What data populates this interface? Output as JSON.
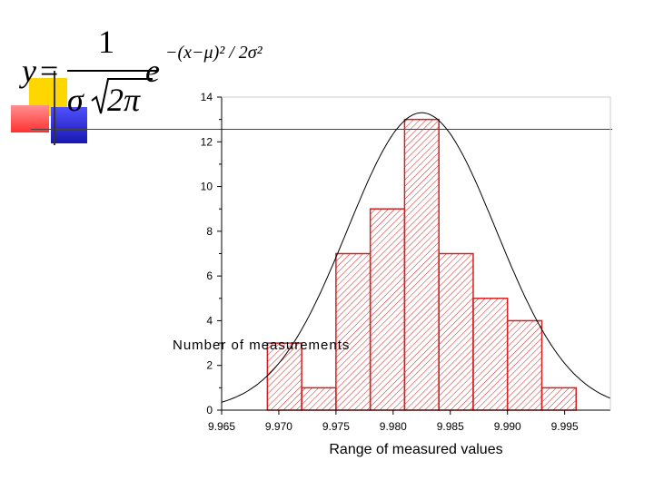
{
  "formula": {
    "lhs": "y",
    "equals": "=",
    "numerator": "1",
    "sigma": "σ",
    "sqrt_two_pi": "2π",
    "e": "e",
    "exponent": "−(x−μ)² / 2σ²"
  },
  "colors": {
    "bar_stroke": "#d62020",
    "hatch": "#d62020",
    "curve": "#000000",
    "deco_yellow": "#ffd700",
    "deco_red": "#ff3030",
    "deco_blue": "#2020c8"
  },
  "chart_data": {
    "type": "bar",
    "xlabel": "Range of measured values",
    "ylabel": "Number of measurements",
    "xlim": [
      9.965,
      9.999
    ],
    "ylim": [
      0,
      14
    ],
    "xticks": [
      "9.965",
      "9.970",
      "9.975",
      "9.980",
      "9.985",
      "9.990",
      "9.995"
    ],
    "yticks": [
      "0",
      "2",
      "4",
      "6",
      "8",
      "10",
      "12",
      "14"
    ],
    "bin_width": 0.003,
    "bins": [
      {
        "center": 9.9705,
        "value": 3
      },
      {
        "center": 9.9735,
        "value": 1
      },
      {
        "center": 9.9765,
        "value": 7
      },
      {
        "center": 9.9795,
        "value": 9
      },
      {
        "center": 9.9825,
        "value": 13
      },
      {
        "center": 9.9855,
        "value": 7
      },
      {
        "center": 9.9885,
        "value": 5
      },
      {
        "center": 9.9915,
        "value": 4
      },
      {
        "center": 9.9945,
        "value": 1
      }
    ],
    "curve": {
      "type": "normal",
      "mean": 9.9825,
      "peak": 13.3,
      "sigma": 0.0065
    },
    "grid": false
  }
}
